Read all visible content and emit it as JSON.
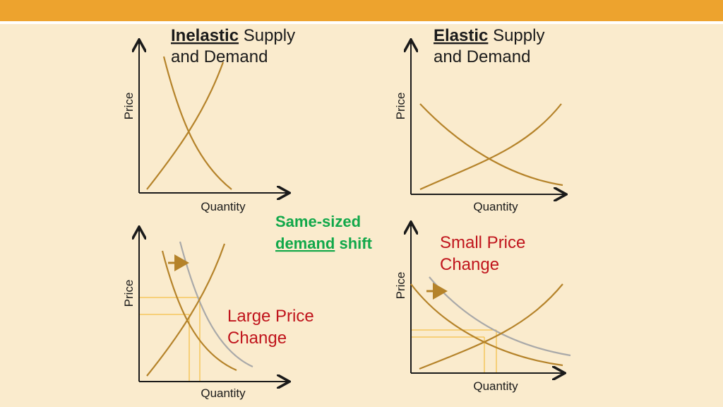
{
  "panels": [
    {
      "title_key": "Inelastic",
      "title_rest": "Supply",
      "title_line2": "and Demand",
      "y_label": "Price",
      "x_label": "Quantity"
    },
    {
      "title_key": "Elastic",
      "title_rest": "Supply",
      "title_line2": "and Demand",
      "y_label": "Price",
      "x_label": "Quantity"
    },
    {
      "y_label": "Price",
      "x_label": "Quantity",
      "annotation": [
        "Large Price",
        "Change"
      ]
    },
    {
      "y_label": "Price",
      "x_label": "Quantity",
      "annotation": [
        "Small Price",
        "Change"
      ]
    }
  ],
  "center_note": {
    "line1": "Same-sized",
    "key": "demand",
    "rest": "shift"
  }
}
